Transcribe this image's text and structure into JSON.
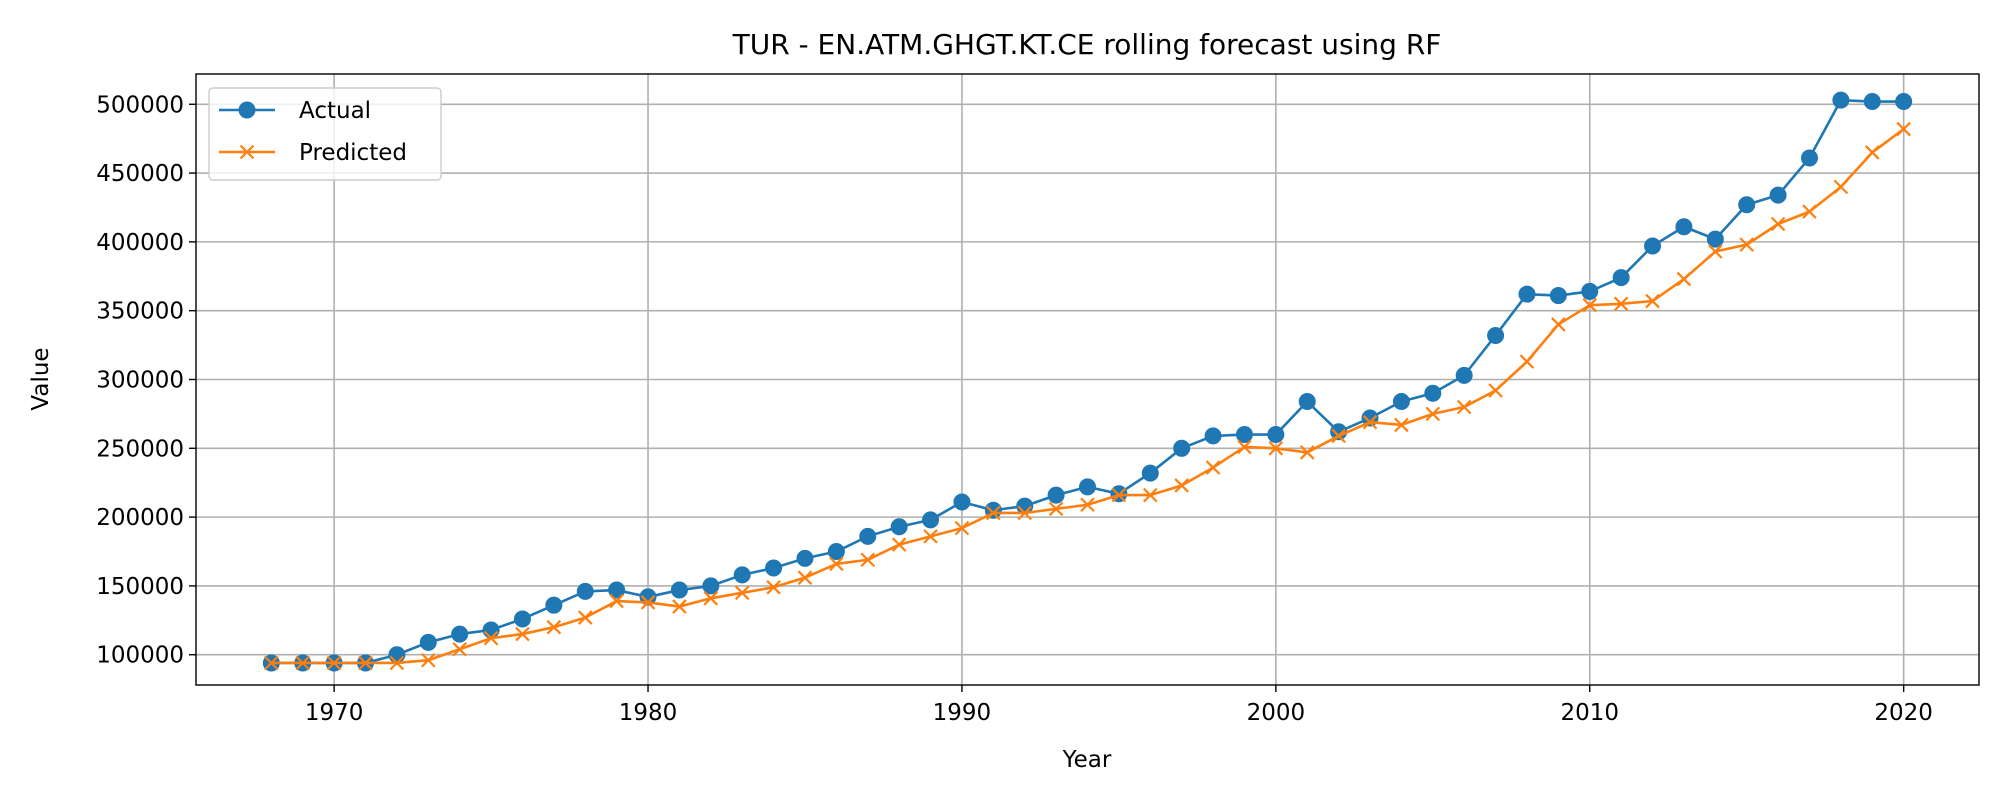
{
  "chart_data": {
    "type": "line",
    "title": "TUR - EN.ATM.GHGT.KT.CE rolling forecast using RF",
    "xlabel": "Year",
    "ylabel": "Value",
    "xlim": [
      1965.6,
      2022.4
    ],
    "ylim": [
      78000,
      522000
    ],
    "xticks": [
      1970,
      1980,
      1990,
      2000,
      2010,
      2020
    ],
    "yticks": [
      100000,
      150000,
      200000,
      250000,
      300000,
      350000,
      400000,
      450000,
      500000
    ],
    "grid": true,
    "legend_position": "top-left",
    "x": [
      1968,
      1969,
      1970,
      1971,
      1972,
      1973,
      1974,
      1975,
      1976,
      1977,
      1978,
      1979,
      1980,
      1981,
      1982,
      1983,
      1984,
      1985,
      1986,
      1987,
      1988,
      1989,
      1990,
      1991,
      1992,
      1993,
      1994,
      1995,
      1996,
      1997,
      1998,
      1999,
      2000,
      2001,
      2002,
      2003,
      2004,
      2005,
      2006,
      2007,
      2008,
      2009,
      2010,
      2011,
      2012,
      2013,
      2014,
      2015,
      2016,
      2017,
      2018,
      2019,
      2020
    ],
    "series": [
      {
        "name": "Actual",
        "color": "#1f77b4",
        "marker": "circle",
        "values": [
          94000,
          94000,
          94000,
          94000,
          100000,
          109000,
          115000,
          118000,
          126000,
          136000,
          146000,
          147000,
          142000,
          147000,
          150000,
          158000,
          163000,
          170000,
          175000,
          186000,
          193000,
          198000,
          211000,
          205000,
          208000,
          216000,
          222000,
          217000,
          232000,
          250000,
          259000,
          260000,
          260000,
          284000,
          262000,
          272000,
          284000,
          290000,
          303000,
          332000,
          362000,
          361000,
          364000,
          374000,
          397000,
          411000,
          402000,
          427000,
          434000,
          461000,
          503000,
          502000,
          502000
        ]
      },
      {
        "name": "Predicted",
        "color": "#ff7f0e",
        "marker": "x",
        "values": [
          94000,
          94000,
          94000,
          94000,
          94000,
          96000,
          104000,
          112000,
          115000,
          120000,
          127000,
          139000,
          138000,
          135000,
          141000,
          145000,
          149000,
          156000,
          166000,
          169000,
          180000,
          186000,
          192000,
          203000,
          203000,
          206000,
          209000,
          216000,
          216000,
          223000,
          236000,
          251000,
          250000,
          247000,
          259000,
          269000,
          267000,
          275000,
          280000,
          292000,
          313000,
          340000,
          354000,
          355000,
          357000,
          373000,
          393000,
          398000,
          413000,
          422000,
          440000,
          465000,
          482000
        ]
      }
    ]
  }
}
